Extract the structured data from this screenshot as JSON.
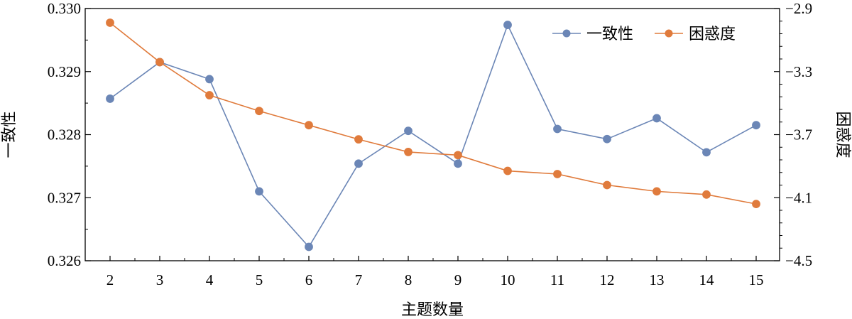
{
  "chart_data": {
    "type": "line",
    "x": [
      2,
      3,
      4,
      5,
      6,
      7,
      8,
      9,
      10,
      11,
      12,
      13,
      14,
      15
    ],
    "xlabel": "主题数量",
    "y_left": {
      "label": "一致性",
      "lim": [
        0.326,
        0.33
      ],
      "ticks": [
        "0.326",
        "0.327",
        "0.328",
        "0.329",
        "0.330"
      ]
    },
    "y_right": {
      "label": "困惑度",
      "lim": [
        -4.5,
        -2.9
      ],
      "ticks": [
        "-4.5",
        "-4.1",
        "-3.7",
        "-3.3",
        "-2.9"
      ]
    },
    "series": [
      {
        "name": "一致性",
        "axis": "left",
        "color": "#6b86b6",
        "values": [
          0.32857,
          0.32915,
          0.32888,
          0.3271,
          0.32622,
          0.32754,
          0.32806,
          0.32754,
          0.32974,
          0.32809,
          0.32793,
          0.32826,
          0.32772,
          0.32815
        ]
      },
      {
        "name": "困惑度",
        "axis": "right",
        "color": "#e07b3c",
        "values": [
          -2.99,
          -3.24,
          -3.45,
          -3.55,
          -3.64,
          -3.73,
          -3.81,
          -3.83,
          -3.93,
          -3.95,
          -4.02,
          -4.06,
          -4.08,
          -4.14
        ]
      }
    ],
    "legend": "top-right",
    "grid": false
  }
}
